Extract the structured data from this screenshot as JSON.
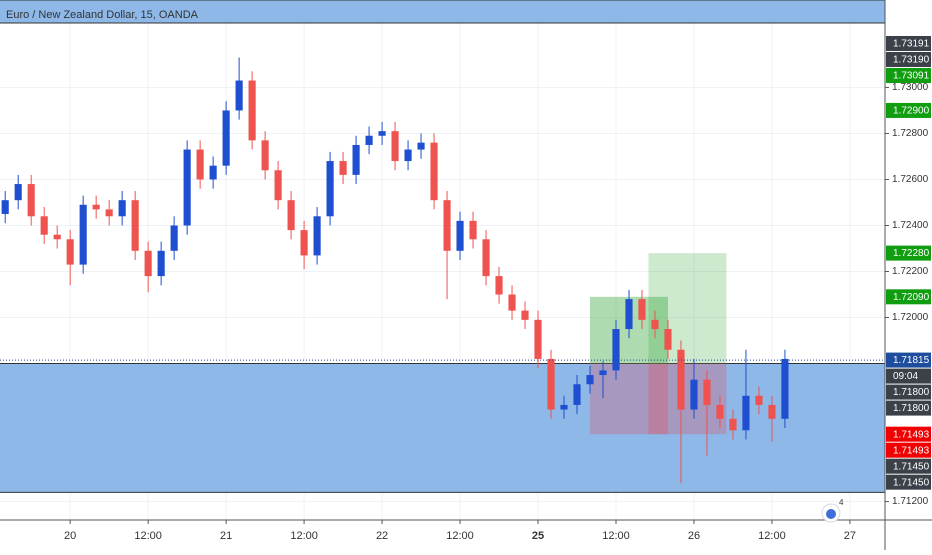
{
  "chart_data": {
    "type": "candlestick",
    "title": "Euro / New Zealand Dollar, 15, OANDA",
    "badge": "4",
    "up_color": "#1f4fd1",
    "down_color": "#ef5350",
    "x": [
      -10,
      -8,
      -6,
      -4,
      -2,
      0,
      2,
      4,
      6,
      8,
      10,
      12,
      14,
      16,
      18,
      20,
      22,
      24,
      26,
      28,
      30,
      32,
      34,
      36,
      38,
      40,
      42,
      44,
      46,
      48,
      50,
      52,
      54,
      56,
      58,
      60,
      62,
      64,
      66,
      68,
      70,
      72,
      74,
      76,
      78,
      80,
      82,
      84,
      86,
      88,
      90,
      92,
      94,
      96,
      98,
      100,
      102,
      104,
      106,
      108,
      110
    ],
    "ohlc": [
      [
        1.7245,
        1.7255,
        1.7241,
        1.7251
      ],
      [
        1.7251,
        1.7262,
        1.7247,
        1.7258
      ],
      [
        1.7258,
        1.7262,
        1.724,
        1.7244
      ],
      [
        1.7244,
        1.7248,
        1.7232,
        1.7236
      ],
      [
        1.7236,
        1.724,
        1.723,
        1.7234
      ],
      [
        1.7234,
        1.7238,
        1.7214,
        1.7223
      ],
      [
        1.7223,
        1.7253,
        1.7219,
        1.7249
      ],
      [
        1.7249,
        1.7253,
        1.7243,
        1.7247
      ],
      [
        1.7247,
        1.7251,
        1.724,
        1.7244
      ],
      [
        1.7244,
        1.7255,
        1.724,
        1.7251
      ],
      [
        1.7251,
        1.7255,
        1.7225,
        1.7229
      ],
      [
        1.7229,
        1.7233,
        1.7211,
        1.7218
      ],
      [
        1.7218,
        1.7233,
        1.7214,
        1.7229
      ],
      [
        1.7229,
        1.7244,
        1.7225,
        1.724
      ],
      [
        1.724,
        1.7277,
        1.7236,
        1.7273
      ],
      [
        1.7273,
        1.7277,
        1.7256,
        1.726
      ],
      [
        1.726,
        1.727,
        1.7256,
        1.7266
      ],
      [
        1.7266,
        1.7294,
        1.7262,
        1.729
      ],
      [
        1.729,
        1.7313,
        1.7286,
        1.7303
      ],
      [
        1.7303,
        1.7307,
        1.7273,
        1.7277
      ],
      [
        1.7277,
        1.7281,
        1.726,
        1.7264
      ],
      [
        1.7264,
        1.7268,
        1.7247,
        1.7251
      ],
      [
        1.7251,
        1.7255,
        1.7234,
        1.7238
      ],
      [
        1.7238,
        1.7242,
        1.7221,
        1.7227
      ],
      [
        1.7227,
        1.7248,
        1.7223,
        1.7244
      ],
      [
        1.7244,
        1.7272,
        1.724,
        1.7268
      ],
      [
        1.7268,
        1.7272,
        1.7258,
        1.7262
      ],
      [
        1.7262,
        1.7279,
        1.7258,
        1.7275
      ],
      [
        1.7275,
        1.7283,
        1.7271,
        1.7279
      ],
      [
        1.7279,
        1.7285,
        1.7275,
        1.7281
      ],
      [
        1.7281,
        1.7285,
        1.7264,
        1.7268
      ],
      [
        1.7268,
        1.7277,
        1.7264,
        1.7273
      ],
      [
        1.7273,
        1.728,
        1.7269,
        1.7276
      ],
      [
        1.7276,
        1.728,
        1.7247,
        1.7251
      ],
      [
        1.7251,
        1.7255,
        1.7208,
        1.7229
      ],
      [
        1.7229,
        1.7246,
        1.7225,
        1.7242
      ],
      [
        1.7242,
        1.7246,
        1.723,
        1.7234
      ],
      [
        1.7234,
        1.7238,
        1.7214,
        1.7218
      ],
      [
        1.7218,
        1.7222,
        1.7206,
        1.721
      ],
      [
        1.721,
        1.7214,
        1.7199,
        1.7203
      ],
      [
        1.7203,
        1.7207,
        1.7195,
        1.7199
      ],
      [
        1.7199,
        1.7203,
        1.7178,
        1.7182
      ],
      [
        1.7182,
        1.7186,
        1.7156,
        1.716
      ],
      [
        1.716,
        1.7166,
        1.7156,
        1.7162
      ],
      [
        1.7162,
        1.7175,
        1.7158,
        1.7171
      ],
      [
        1.7171,
        1.7179,
        1.7167,
        1.7175
      ],
      [
        1.7175,
        1.7181,
        1.7165,
        1.7177
      ],
      [
        1.7177,
        1.7199,
        1.7173,
        1.7195
      ],
      [
        1.7195,
        1.7212,
        1.7191,
        1.7208
      ],
      [
        1.7208,
        1.7212,
        1.7195,
        1.7199
      ],
      [
        1.7199,
        1.7203,
        1.7191,
        1.7195
      ],
      [
        1.7195,
        1.7199,
        1.7182,
        1.7186
      ],
      [
        1.7186,
        1.719,
        1.7128,
        1.716
      ],
      [
        1.716,
        1.7182,
        1.7156,
        1.7173
      ],
      [
        1.7173,
        1.7177,
        1.714,
        1.7162
      ],
      [
        1.7162,
        1.7166,
        1.7152,
        1.7156
      ],
      [
        1.7156,
        1.716,
        1.7147,
        1.7151
      ],
      [
        1.7151,
        1.7186,
        1.7147,
        1.7166
      ],
      [
        1.7166,
        1.717,
        1.7158,
        1.7162
      ],
      [
        1.7162,
        1.7166,
        1.7146,
        1.7156
      ],
      [
        1.7156,
        1.7186,
        1.7152,
        1.7182
      ]
    ],
    "xlim": [
      -10.8,
      125.4
    ],
    "ylim": [
      1.7112,
      1.7338
    ],
    "xticks": [
      {
        "value": 0,
        "label": "20"
      },
      {
        "value": 12,
        "label": "12:00"
      },
      {
        "value": 24,
        "label": "21"
      },
      {
        "value": 36,
        "label": "12:00"
      },
      {
        "value": 48,
        "label": "22"
      },
      {
        "value": 60,
        "label": "12:00"
      },
      {
        "value": 72,
        "label": "25",
        "bold": true
      },
      {
        "value": 84,
        "label": "12:00"
      },
      {
        "value": 96,
        "label": "26"
      },
      {
        "value": 108,
        "label": "12:00"
      },
      {
        "value": 120,
        "label": "27"
      }
    ],
    "yticks": [
      {
        "value": 1.73,
        "label": "1.73000"
      },
      {
        "value": 1.728,
        "label": "1.72800"
      },
      {
        "value": 1.726,
        "label": "1.72600"
      },
      {
        "value": 1.724,
        "label": "1.72400"
      },
      {
        "value": 1.722,
        "label": "1.72200"
      },
      {
        "value": 1.72,
        "label": "1.72000"
      },
      {
        "value": 1.712,
        "label": "1.71200"
      }
    ],
    "grid": true,
    "zones": [
      {
        "top": 1.7338,
        "bottom": 1.7328
      },
      {
        "top": 1.718,
        "bottom": 1.7124
      }
    ],
    "zone_color": "#8db8e8",
    "positions": [
      {
        "x": [
          80,
          92
        ],
        "entry": 1.718,
        "target": 1.7209,
        "stop": 1.71493
      },
      {
        "x": [
          89,
          101
        ],
        "entry": 1.718,
        "target": 1.7228,
        "stop": 1.71493
      }
    ],
    "current_price": 1.71815,
    "price_labels": [
      {
        "value": 1.73191,
        "label": "1.73191",
        "color": "#3c4048"
      },
      {
        "value": 1.7319,
        "label": "1.73190",
        "color": "#3c4048"
      },
      {
        "value": 1.73091,
        "label": "1.73091",
        "color": "#109d10"
      },
      {
        "value": 1.729,
        "label": "1.72900",
        "color": "#109d10"
      },
      {
        "value": 1.7228,
        "label": "1.72280",
        "color": "#109d10"
      },
      {
        "value": 1.7209,
        "label": "1.72090",
        "color": "#109d10"
      },
      {
        "value": 1.71815,
        "label": "1.71815",
        "color": "#1f4d9e"
      },
      {
        "label": "09:04",
        "color": "#3c4048"
      },
      {
        "value": 1.718,
        "label": "1.71800",
        "color": "#3c4048"
      },
      {
        "value": 1.718,
        "label": "1.71800",
        "color": "#3c4048"
      },
      {
        "value": 1.71493,
        "label": "1.71493",
        "color": "#f00000"
      },
      {
        "value": 1.71493,
        "label": "1.71493",
        "color": "#f00000"
      },
      {
        "value": 1.7145,
        "label": "1.71450",
        "color": "#3c4048"
      },
      {
        "value": 1.7145,
        "label": "1.71450",
        "color": "#3c4048"
      }
    ]
  }
}
